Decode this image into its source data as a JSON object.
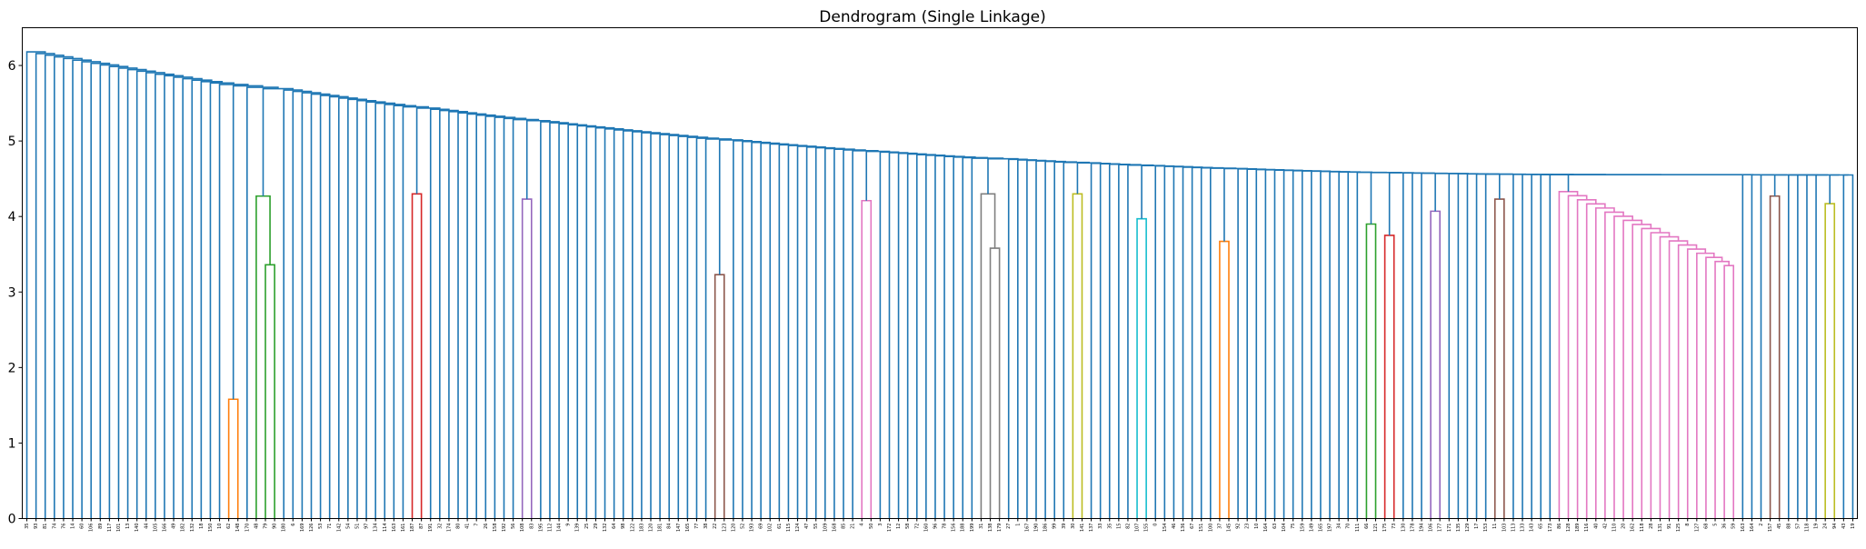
{
  "chart_data": {
    "type": "dendrogram",
    "title": "Dendrogram (Single Linkage)",
    "xlabel": "",
    "ylabel": "",
    "ylim": [
      0,
      6.5
    ],
    "yticks": [
      0,
      1,
      2,
      3,
      4,
      5,
      6
    ],
    "grid": false,
    "leaves": [
      "35",
      "93",
      "81",
      "74",
      "76",
      "14",
      "60",
      "106",
      "89",
      "117",
      "101",
      "13",
      "140",
      "44",
      "105",
      "166",
      "49",
      "182",
      "132",
      "18",
      "150",
      "10",
      "62",
      "148",
      "170",
      "48",
      "79",
      "90",
      "180",
      "6",
      "169",
      "126",
      "53",
      "71",
      "142",
      "54",
      "51",
      "97",
      "134",
      "114",
      "163",
      "161",
      "187",
      "87",
      "191",
      "32",
      "174",
      "80",
      "41",
      "7",
      "26",
      "158",
      "192",
      "56",
      "108",
      "83",
      "195",
      "112",
      "144",
      "9",
      "139",
      "25",
      "29",
      "132",
      "64",
      "98",
      "122",
      "183",
      "120",
      "181",
      "84",
      "147",
      "165",
      "77",
      "38",
      "22",
      "123",
      "120",
      "52",
      "193",
      "69",
      "102",
      "61",
      "115",
      "124",
      "47",
      "55",
      "109",
      "168",
      "85",
      "21",
      "4",
      "50",
      "3",
      "172",
      "12",
      "58",
      "72",
      "160",
      "96",
      "78",
      "156",
      "188",
      "199",
      "31",
      "138",
      "179",
      "27",
      "1",
      "167",
      "190",
      "186",
      "99",
      "39",
      "30",
      "141",
      "137",
      "33",
      "35",
      "15",
      "82",
      "107",
      "155",
      "0",
      "154",
      "46",
      "136",
      "67",
      "151",
      "100",
      "37",
      "145",
      "92",
      "23",
      "10",
      "164",
      "63",
      "104",
      "75",
      "159",
      "149",
      "165",
      "197",
      "34",
      "70",
      "111",
      "66",
      "121",
      "175",
      "73",
      "130",
      "178",
      "194",
      "106",
      "177",
      "171",
      "135",
      "129",
      "17",
      "153",
      "11",
      "103",
      "113",
      "133",
      "143",
      "65",
      "173",
      "86",
      "128",
      "189",
      "116",
      "40",
      "42",
      "110",
      "20",
      "162",
      "118",
      "28",
      "131",
      "91",
      "125",
      "8",
      "127",
      "68",
      "5",
      "36",
      "59",
      "163",
      "164",
      "2",
      "157",
      "45",
      "88",
      "57",
      "118",
      "19",
      "24",
      "94",
      "43",
      "19"
    ],
    "color_clusters": [
      {
        "color": "#ff7f0e",
        "leaves": [
          "62",
          "148"
        ],
        "height": 1.58
      },
      {
        "color": "#2ca02c",
        "leaves": [
          "48",
          "79",
          "90"
        ],
        "height": 4.27,
        "inner_height": 3.36
      },
      {
        "color": "#d62728",
        "leaves": [
          "187",
          "87"
        ],
        "height": 4.3
      },
      {
        "color": "#9467bd",
        "leaves": [
          "108",
          "83"
        ],
        "height": 4.23
      },
      {
        "color": "#8c564b",
        "leaves": [
          "22",
          "123"
        ],
        "height": 3.23
      },
      {
        "color": "#e377c2",
        "leaves": [
          "4",
          "50"
        ],
        "height": 4.21
      },
      {
        "color": "#7f7f7f",
        "leaves": [
          "31",
          "138",
          "179"
        ],
        "height": 4.3,
        "inner_height": 3.58
      },
      {
        "color": "#bcbd22",
        "leaves": [
          "30",
          "141"
        ],
        "height": 4.3
      },
      {
        "color": "#17becf",
        "leaves": [
          "107",
          "155"
        ],
        "height": 3.97
      },
      {
        "color": "#ff7f0e",
        "leaves": [
          "37",
          "145"
        ],
        "height": 3.67
      },
      {
        "color": "#2ca02c",
        "leaves": [
          "66",
          "121"
        ],
        "height": 3.9
      },
      {
        "color": "#d62728",
        "leaves": [
          "175",
          "73"
        ],
        "height": 3.75
      },
      {
        "color": "#9467bd",
        "leaves": [
          "106",
          "177"
        ],
        "height": 4.07
      },
      {
        "color": "#8c564b",
        "leaves": [
          "11",
          "103"
        ],
        "height": 4.23
      },
      {
        "color": "#e377c2",
        "leaves_range": [
          "86",
          "59"
        ],
        "height": 4.33
      },
      {
        "color": "#8c564b",
        "leaves": [
          "157",
          "45"
        ],
        "height": 4.27
      },
      {
        "color": "#bcbd22",
        "leaves": [
          "24",
          "94"
        ],
        "height": 4.17
      }
    ],
    "root_height": 6.18,
    "above_threshold_color": "#1f77b4"
  }
}
